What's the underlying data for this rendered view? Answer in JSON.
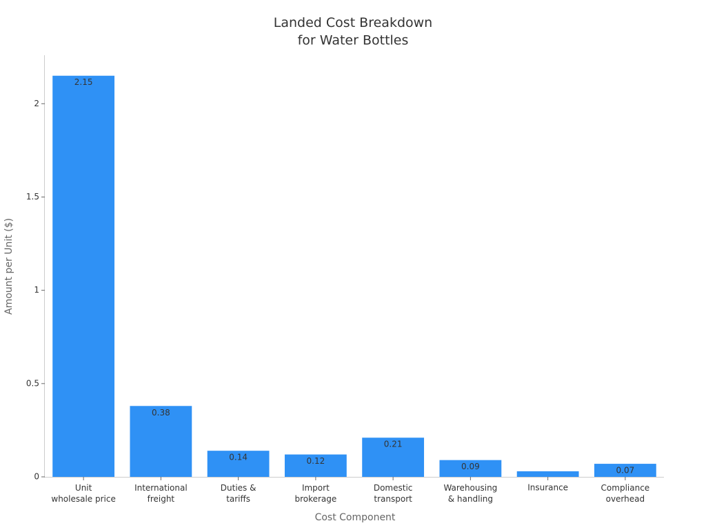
{
  "chart_data": {
    "type": "bar",
    "title": "Landed Cost Breakdown\nfor Water Bottles",
    "x_label": "Cost Component",
    "y_label": "Amount per Unit ($)",
    "categories": [
      "Unit\nwholesale price",
      "International\nfreight",
      "Duties &\ntariffs",
      "Import\nbrokerage",
      "Domestic\ntransport",
      "Warehousing\n& handling",
      "Insurance",
      "Compliance\noverhead"
    ],
    "values": [
      2.15,
      0.38,
      0.14,
      0.12,
      0.21,
      0.09,
      0.03,
      0.07
    ],
    "color": "#2f91f5",
    "ylim": [
      0,
      2.26
    ],
    "yticks": [
      0,
      0.5,
      1,
      1.5,
      2
    ],
    "grid": false
  }
}
